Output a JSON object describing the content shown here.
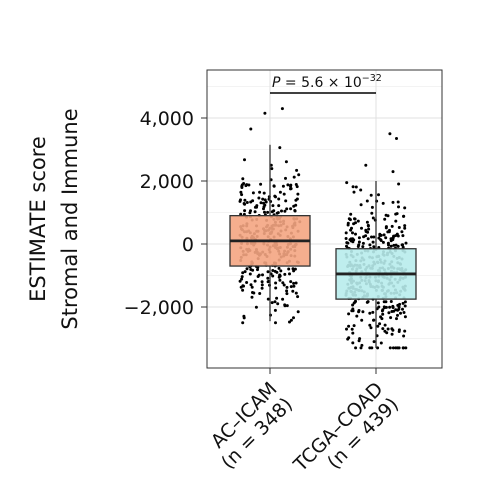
{
  "chart_data": {
    "type": "box",
    "ylabel_line1": "ESTIMATE score",
    "ylabel_line2": "Stromal and Immune",
    "ylim": [
      -3800,
      5400
    ],
    "yticks": [
      {
        "value": 4000,
        "label": "4,000"
      },
      {
        "value": 2000,
        "label": "2,000"
      },
      {
        "value": 0,
        "label": "0"
      },
      {
        "value": -2000,
        "label": "−2,000"
      }
    ],
    "grid": true,
    "annotation": {
      "prefix": "P",
      "text": " = 5.6 × 10",
      "exponent": "−32"
    },
    "groups": [
      {
        "name": "AC–ICAM",
        "n_label": "(n = 348)",
        "n": 348,
        "color": "#f4a582",
        "q1": -700,
        "median": 100,
        "q3": 900,
        "whisker_low": -2450,
        "whisker_high": 3150,
        "points_min": -2500,
        "points_max": 4300
      },
      {
        "name": "TCGA–COAD",
        "n_label": "(n = 439)",
        "n": 439,
        "color": "#b8ecec",
        "q1": -1750,
        "median": -950,
        "q3": -150,
        "whisker_low": -3300,
        "whisker_high": 2000,
        "points_min": -3300,
        "points_max": 3500
      }
    ]
  }
}
